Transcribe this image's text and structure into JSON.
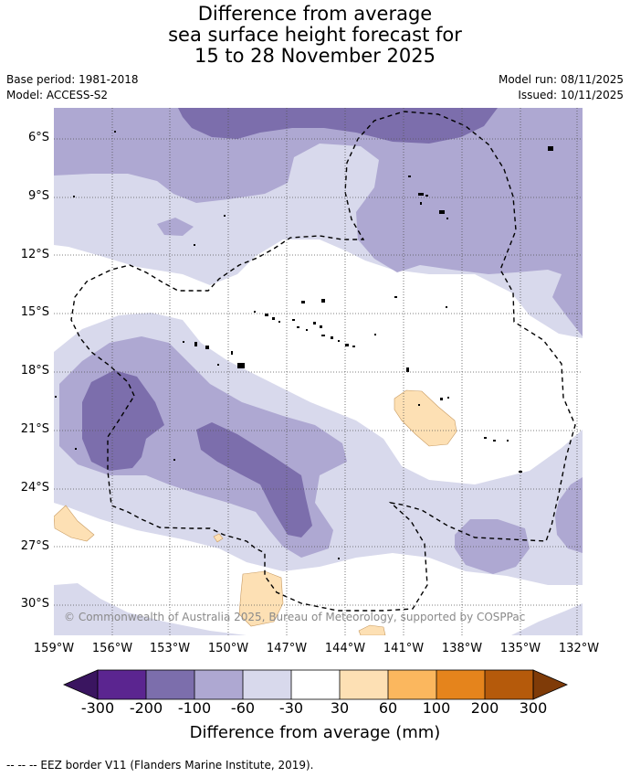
{
  "title": {
    "line1": "Difference from average",
    "line2": "sea surface height forecast for",
    "line3": "15 to 28 November 2025"
  },
  "meta": {
    "base_period": "Base period: 1981-2018",
    "model": "Model: ACCESS-S2",
    "model_run": "Model run: 08/11/2025",
    "issued": "Issued: 10/11/2025"
  },
  "axes": {
    "lat_labels": [
      "6°S",
      "9°S",
      "12°S",
      "15°S",
      "18°S",
      "21°S",
      "24°S",
      "27°S",
      "30°S"
    ],
    "lon_labels": [
      "159°W",
      "156°W",
      "153°W",
      "150°W",
      "147°W",
      "144°W",
      "141°W",
      "138°W",
      "135°W",
      "132°W"
    ]
  },
  "copyright": "© Commonwealth of Australia 2025, Bureau of Meteorology, supported by COSPPac",
  "colorbar": {
    "title": "Difference from average (mm)",
    "ticks": [
      "-300",
      "-200",
      "-100",
      "-60",
      "-30",
      "30",
      "60",
      "100",
      "200",
      "300"
    ],
    "colors": [
      "#3a1560",
      "#5b2590",
      "#7c6eac",
      "#aea8d2",
      "#d8d9ec",
      "#ffffff",
      "#fde0b4",
      "#fbb75e",
      "#e5841c",
      "#b55a0b",
      "#7f3b08"
    ]
  },
  "footer": "--  --  -- EEZ border V11 (Flanders Marine Institute, 2019)."
}
